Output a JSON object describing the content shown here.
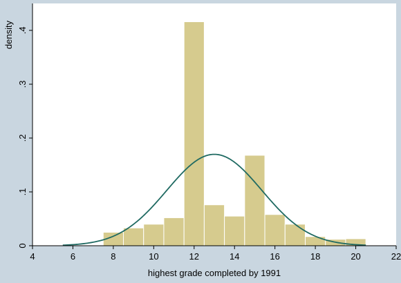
{
  "chart_data": {
    "type": "histogram",
    "xlabel": "highest grade completed by 1991",
    "ylabel": "density",
    "xlim": [
      4,
      22
    ],
    "ylim": [
      0,
      0.45
    ],
    "x_ticks": [
      4,
      6,
      8,
      10,
      12,
      14,
      16,
      18,
      20,
      22
    ],
    "x_tick_labels": [
      "4",
      "6",
      "8",
      "10",
      "12",
      "14",
      "16",
      "18",
      "20",
      "22"
    ],
    "y_ticks": [
      0,
      0.1,
      0.2,
      0.3,
      0.4
    ],
    "y_tick_labels": [
      "0",
      ".1",
      ".2",
      ".3",
      ".4"
    ],
    "grid": false,
    "bars": [
      {
        "x0": 7.5,
        "x1": 8.5,
        "value": 0.025
      },
      {
        "x0": 8.5,
        "x1": 9.5,
        "value": 0.033
      },
      {
        "x0": 9.5,
        "x1": 10.5,
        "value": 0.04
      },
      {
        "x0": 10.5,
        "x1": 11.5,
        "value": 0.052
      },
      {
        "x0": 11.5,
        "x1": 12.5,
        "value": 0.416
      },
      {
        "x0": 12.5,
        "x1": 13.5,
        "value": 0.076
      },
      {
        "x0": 13.5,
        "x1": 14.5,
        "value": 0.055
      },
      {
        "x0": 14.5,
        "x1": 15.5,
        "value": 0.168
      },
      {
        "x0": 15.5,
        "x1": 16.5,
        "value": 0.058
      },
      {
        "x0": 16.5,
        "x1": 17.5,
        "value": 0.04
      },
      {
        "x0": 17.5,
        "x1": 18.5,
        "value": 0.017
      },
      {
        "x0": 18.5,
        "x1": 19.5,
        "value": 0.012
      },
      {
        "x0": 19.5,
        "x1": 20.5,
        "value": 0.013
      }
    ],
    "normal_curve": {
      "mean": 13.0,
      "sd": 2.35,
      "x_start": 5.5,
      "x_end": 20.5
    },
    "colors": {
      "background": "#c9d6e0",
      "plot_area": "#ffffff",
      "bar_fill": "#d6cb8e",
      "bar_stroke": "#ffffff",
      "curve": "#1f6a62",
      "axis": "#000000"
    }
  }
}
